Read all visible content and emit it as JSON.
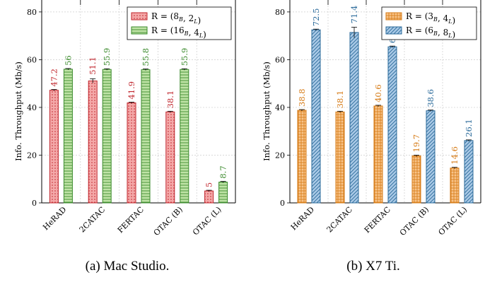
{
  "captions": [
    "(a) Mac Studio.",
    "(b) X7 Ti."
  ],
  "chart_data": [
    {
      "type": "bar",
      "title": "",
      "xlabel": "",
      "ylabel": "Info. Throughput (Mb/s)",
      "ylim": [
        0,
        85
      ],
      "yticks": [
        0,
        20,
        40,
        60,
        80
      ],
      "grid": true,
      "legend_position": "top-right",
      "categories": [
        "HeRAD",
        "2CATAC",
        "FERTAC",
        "OTAC (B)",
        "OTAC (L)"
      ],
      "series": [
        {
          "legend_math": {
            "pre": "R = (8",
            "sub1": "B",
            "mid": ", 2",
            "sub2": "L",
            "post": ")"
          },
          "values": [
            47.2,
            51.1,
            41.9,
            38.1,
            5
          ],
          "labels": [
            "47.2",
            "51.1",
            "41.9",
            "38.1",
            "5"
          ],
          "err": [
            0,
            0.9,
            0,
            0,
            0
          ],
          "fill": "#f4a8a8",
          "stroke": "#c0262d",
          "pattern": "dots"
        },
        {
          "legend_math": {
            "pre": "R = (16",
            "sub1": "B",
            "mid": ", 4",
            "sub2": "L",
            "post": ")"
          },
          "values": [
            56,
            55.9,
            55.8,
            55.9,
            8.7
          ],
          "labels": [
            "56",
            "55.9",
            "55.8",
            "55.9",
            "8.7"
          ],
          "err": [
            0,
            0,
            0,
            0,
            0
          ],
          "fill": "#bfe3a6",
          "stroke": "#3a8a2b",
          "pattern": "hlines"
        }
      ]
    },
    {
      "type": "bar",
      "title": "",
      "xlabel": "",
      "ylabel": "Info. Throughput (Mb/s)",
      "ylim": [
        0,
        85
      ],
      "yticks": [
        0,
        20,
        40,
        60,
        80
      ],
      "grid": true,
      "legend_position": "top-right",
      "categories": [
        "HeRAD",
        "2CATAC",
        "FERTAC",
        "OTAC (B)",
        "OTAC (L)"
      ],
      "series": [
        {
          "legend_math": {
            "pre": "R = (3",
            "sub1": "B",
            "mid": ", 4",
            "sub2": "L",
            "post": ")"
          },
          "values": [
            38.8,
            38.1,
            40.6,
            19.7,
            14.6
          ],
          "labels": [
            "38.8",
            "38.1",
            "40.6",
            "19.7",
            "14.6"
          ],
          "err": [
            0,
            0,
            0,
            0,
            0
          ],
          "fill": "#f8c48a",
          "stroke": "#d67a14",
          "pattern": "grid"
        },
        {
          "legend_math": {
            "pre": "R = (6",
            "sub1": "B",
            "mid": ", 8",
            "sub2": "L",
            "post": ")"
          },
          "values": [
            72.5,
            71.4,
            65.4,
            38.6,
            26.1
          ],
          "labels": [
            "72.5",
            "71.4",
            "65.4",
            "38.6",
            "26.1"
          ],
          "err": [
            0,
            2.2,
            0,
            0,
            0
          ],
          "fill": "#a9c9e6",
          "stroke": "#2a6a9a",
          "pattern": "diag"
        }
      ]
    }
  ]
}
